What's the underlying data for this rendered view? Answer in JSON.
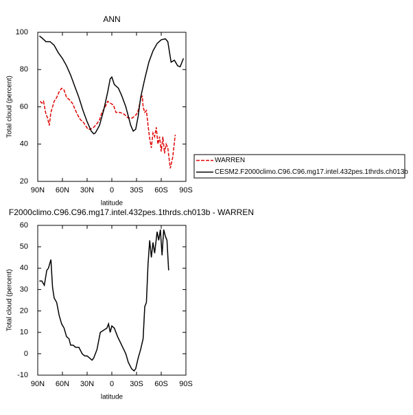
{
  "chart_data": [
    {
      "type": "line",
      "title": "ANN",
      "xlabel": "latitude",
      "ylabel": "Total cloud (percent)",
      "xlim": [
        90,
        -90
      ],
      "xticks": [
        {
          "value": 90,
          "label": "90N"
        },
        {
          "value": 60,
          "label": "60N"
        },
        {
          "value": 30,
          "label": "30N"
        },
        0,
        {
          "value": -30,
          "label": "30S"
        },
        {
          "value": -60,
          "label": "60S"
        },
        {
          "value": -90,
          "label": "90S"
        }
      ],
      "ylim": [
        20,
        100
      ],
      "yticks": [
        20,
        40,
        60,
        80,
        100
      ],
      "series": [
        {
          "name": "WARREN",
          "color": "#e00000",
          "line_style": "dashed",
          "x": [
            87,
            85,
            83,
            80,
            78,
            76,
            74,
            70,
            67,
            64,
            61,
            58,
            55,
            52,
            48,
            45,
            42,
            38,
            35,
            32,
            29,
            26,
            22,
            18,
            15,
            12,
            8,
            5,
            2,
            -2,
            -5,
            -10,
            -15,
            -20,
            -25,
            -30,
            -32,
            -35,
            -37,
            -38,
            -40,
            -42,
            -44,
            -46,
            -48,
            -50,
            -52,
            -54,
            -56,
            -58,
            -60,
            -62,
            -64,
            -66,
            -68,
            -71,
            -74,
            -77
          ],
          "values": [
            63,
            62,
            63,
            56,
            54,
            50,
            57,
            63,
            65,
            68,
            70,
            69,
            65,
            64,
            62,
            59,
            56,
            53,
            52,
            50,
            48,
            48,
            49,
            51,
            53,
            57,
            60,
            63,
            62,
            61,
            57,
            57,
            56,
            54,
            54,
            56,
            58,
            64,
            66,
            60,
            57,
            58,
            50,
            43,
            38,
            46,
            44,
            49,
            40,
            44,
            36,
            44,
            35,
            40,
            38,
            27,
            33,
            45
          ]
        },
        {
          "name": "CESM2.F2000climo.C96.C96.mg17.intel.432pes.1thrds.ch013b",
          "color": "#000000",
          "line_style": "solid",
          "x": [
            88,
            85,
            80,
            75,
            70,
            65,
            60,
            55,
            50,
            45,
            40,
            35,
            30,
            25,
            22,
            20,
            15,
            10,
            5,
            2,
            0,
            -3,
            -8,
            -12,
            -17,
            -20,
            -23,
            -26,
            -29,
            -32,
            -35,
            -40,
            -45,
            -50,
            -55,
            -60,
            -65,
            -68,
            -72,
            -76,
            -80,
            -83,
            -87
          ],
          "values": [
            98,
            97,
            95,
            95,
            93,
            89,
            86,
            82,
            77,
            71,
            65,
            58,
            52,
            47,
            45.5,
            46,
            50,
            58,
            68,
            75,
            76,
            72,
            70,
            66,
            60,
            55,
            50,
            47,
            48,
            55,
            65,
            75,
            84,
            90,
            94,
            96,
            96.5,
            95,
            84,
            85,
            82,
            81.5,
            86
          ]
        }
      ]
    },
    {
      "type": "line",
      "title": "F2000climo.C96.C96.mg17.intel.432pes.1thrds.ch013b - WARREN",
      "xlabel": "latitude",
      "ylabel": "Total cloud (percent)",
      "xlim": [
        90,
        -90
      ],
      "xticks": [
        {
          "value": 90,
          "label": "90N"
        },
        {
          "value": 60,
          "label": "60N"
        },
        {
          "value": 30,
          "label": "30N"
        },
        0,
        {
          "value": -30,
          "label": "30S"
        },
        {
          "value": -60,
          "label": "60S"
        },
        {
          "value": -90,
          "label": "90S"
        }
      ],
      "ylim": [
        -10,
        60
      ],
      "yticks": [
        -10,
        0,
        10,
        20,
        30,
        40,
        50,
        60
      ],
      "series": [
        {
          "color": "#000000",
          "line_style": "solid",
          "x": [
            88,
            85,
            82,
            79,
            77,
            74,
            72,
            70,
            67,
            64,
            61,
            58,
            55,
            52,
            50,
            47,
            44,
            40,
            36,
            33,
            30,
            27,
            24,
            22,
            18,
            14,
            10,
            6,
            4,
            2,
            0,
            -3,
            -7,
            -12,
            -17,
            -20,
            -24,
            -27,
            -29,
            -32,
            -35,
            -38,
            -40,
            -42,
            -44,
            -46,
            -48,
            -50,
            -52,
            -55,
            -57,
            -59,
            -61,
            -63,
            -65,
            -67,
            -69
          ],
          "values": [
            34,
            34,
            32,
            39,
            40,
            44,
            31,
            26,
            24,
            18,
            14,
            12,
            8,
            7,
            4,
            4,
            3,
            3,
            0,
            -1,
            -1,
            -2,
            -3,
            -2,
            2,
            10,
            11,
            12,
            14,
            10,
            13,
            12,
            8,
            4,
            0,
            -4,
            -7,
            -8,
            -7,
            -2,
            2,
            7,
            22,
            24,
            42,
            53,
            45,
            52,
            47,
            57,
            53,
            58,
            46,
            58,
            55,
            53,
            39
          ]
        }
      ]
    }
  ]
}
